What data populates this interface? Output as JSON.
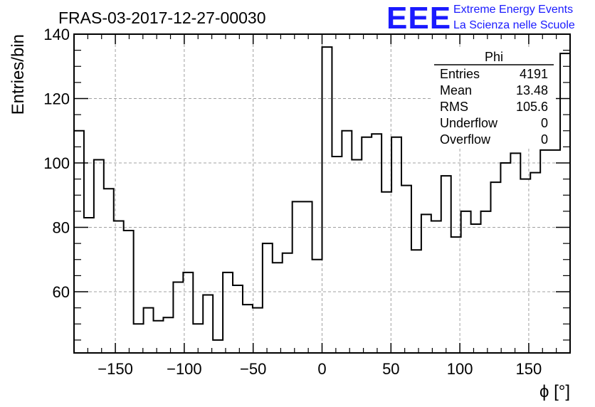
{
  "header": {
    "title": "FRAS-03-2017-12-27-00030",
    "logo_mark": "EEE",
    "logo_line1": "Extreme Energy Events",
    "logo_line2": "La Scienza nelle Scuole",
    "logo_color": "#1a1aff"
  },
  "stats_box": {
    "name": "Phi",
    "rows": [
      {
        "label": "Entries",
        "value": "4191"
      },
      {
        "label": "Mean",
        "value": "13.48"
      },
      {
        "label": "RMS",
        "value": "105.6"
      },
      {
        "label": "Underflow",
        "value": "0"
      },
      {
        "label": "Overflow",
        "value": "0"
      }
    ]
  },
  "chart_data": {
    "type": "histogram",
    "title": "FRAS-03-2017-12-27-00030",
    "xlabel": "ϕ [°]",
    "ylabel": "Entries/bin",
    "xlim": [
      -180,
      180
    ],
    "ylim": [
      41,
      140
    ],
    "bin_width": 7.2,
    "x_ticks": [
      -150,
      -100,
      -50,
      0,
      50,
      100,
      150
    ],
    "x_tick_labels": [
      "−150",
      "−100",
      "−50",
      "0",
      "50",
      "100",
      "150"
    ],
    "y_ticks": [
      60,
      80,
      100,
      120,
      140
    ],
    "grid": true,
    "line_color": "#000000",
    "values": [
      110,
      83,
      101,
      92,
      82,
      79,
      50,
      55,
      51,
      52,
      63,
      66,
      50,
      59,
      45,
      66,
      62,
      56,
      55,
      75,
      69,
      72,
      88,
      88,
      70,
      136,
      102,
      110,
      101,
      108,
      109,
      91,
      108,
      93,
      73,
      84,
      82,
      96,
      77,
      85,
      81,
      85,
      94,
      100,
      103,
      95,
      97,
      104,
      104,
      134
    ]
  }
}
